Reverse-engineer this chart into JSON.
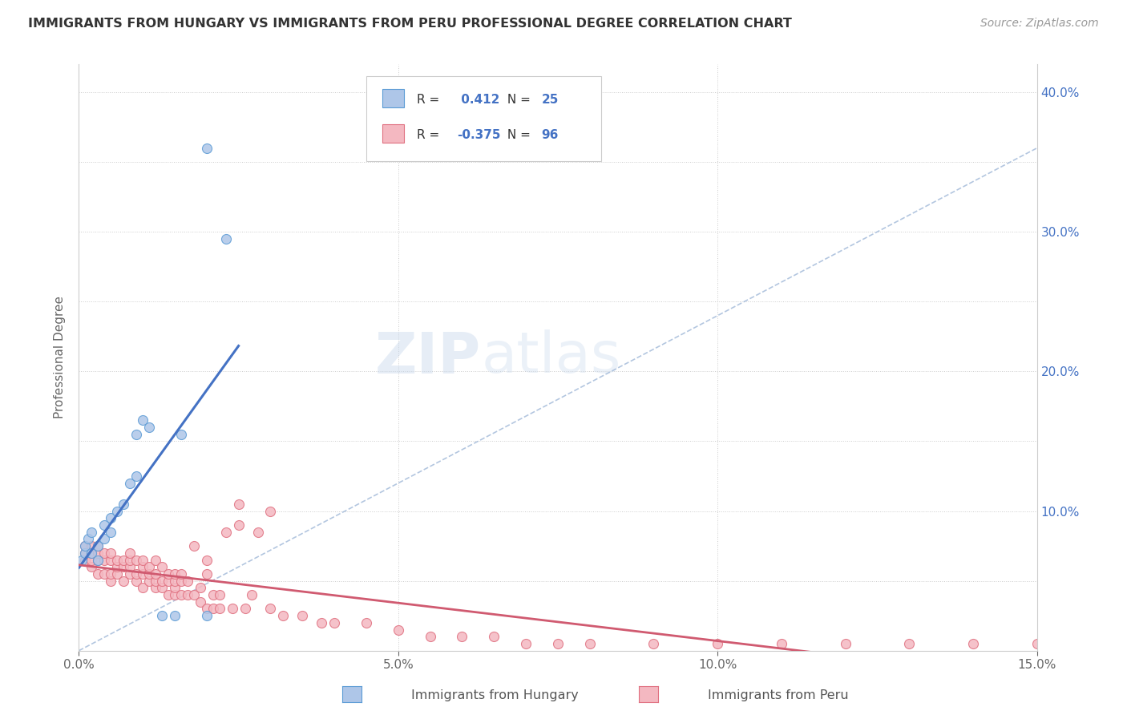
{
  "title": "IMMIGRANTS FROM HUNGARY VS IMMIGRANTS FROM PERU PROFESSIONAL DEGREE CORRELATION CHART",
  "source": "Source: ZipAtlas.com",
  "ylabel": "Professional Degree",
  "xlim": [
    0.0,
    0.15
  ],
  "ylim": [
    0.0,
    0.42
  ],
  "hungary_color": "#aec6e8",
  "hungary_edge_color": "#5b9bd5",
  "peru_color": "#f4b8c1",
  "peru_edge_color": "#e07080",
  "hungary_R": 0.412,
  "hungary_N": 25,
  "peru_R": -0.375,
  "peru_N": 96,
  "hungary_line_color": "#4472c4",
  "peru_line_color": "#d05a70",
  "dashed_line_color": "#a0b8d8",
  "watermark": "ZIPatlas",
  "hungary_scatter_x": [
    0.0005,
    0.001,
    0.001,
    0.0015,
    0.002,
    0.002,
    0.003,
    0.003,
    0.004,
    0.004,
    0.005,
    0.005,
    0.006,
    0.007,
    0.008,
    0.009,
    0.009,
    0.01,
    0.011,
    0.013,
    0.015,
    0.016,
    0.02,
    0.02,
    0.023
  ],
  "hungary_scatter_y": [
    0.065,
    0.07,
    0.075,
    0.08,
    0.07,
    0.085,
    0.065,
    0.075,
    0.08,
    0.09,
    0.085,
    0.095,
    0.1,
    0.105,
    0.12,
    0.125,
    0.155,
    0.165,
    0.16,
    0.025,
    0.025,
    0.155,
    0.36,
    0.025,
    0.295
  ],
  "peru_scatter_x": [
    0.001,
    0.001,
    0.001,
    0.002,
    0.002,
    0.002,
    0.002,
    0.003,
    0.003,
    0.003,
    0.003,
    0.004,
    0.004,
    0.004,
    0.005,
    0.005,
    0.005,
    0.005,
    0.006,
    0.006,
    0.006,
    0.007,
    0.007,
    0.007,
    0.008,
    0.008,
    0.008,
    0.008,
    0.009,
    0.009,
    0.009,
    0.01,
    0.01,
    0.01,
    0.01,
    0.011,
    0.011,
    0.011,
    0.012,
    0.012,
    0.012,
    0.012,
    0.013,
    0.013,
    0.013,
    0.014,
    0.014,
    0.014,
    0.015,
    0.015,
    0.015,
    0.015,
    0.016,
    0.016,
    0.016,
    0.017,
    0.017,
    0.018,
    0.018,
    0.019,
    0.019,
    0.02,
    0.02,
    0.021,
    0.021,
    0.022,
    0.022,
    0.023,
    0.024,
    0.025,
    0.026,
    0.027,
    0.028,
    0.03,
    0.032,
    0.035,
    0.038,
    0.04,
    0.045,
    0.05,
    0.055,
    0.06,
    0.065,
    0.07,
    0.075,
    0.08,
    0.09,
    0.1,
    0.11,
    0.12,
    0.13,
    0.14,
    0.15,
    0.03,
    0.025,
    0.02
  ],
  "peru_scatter_y": [
    0.065,
    0.07,
    0.075,
    0.06,
    0.065,
    0.07,
    0.075,
    0.055,
    0.065,
    0.07,
    0.075,
    0.055,
    0.065,
    0.07,
    0.05,
    0.055,
    0.065,
    0.07,
    0.055,
    0.06,
    0.065,
    0.05,
    0.06,
    0.065,
    0.055,
    0.06,
    0.065,
    0.07,
    0.05,
    0.055,
    0.065,
    0.045,
    0.055,
    0.06,
    0.065,
    0.05,
    0.055,
    0.06,
    0.045,
    0.05,
    0.055,
    0.065,
    0.045,
    0.05,
    0.06,
    0.04,
    0.05,
    0.055,
    0.04,
    0.045,
    0.05,
    0.055,
    0.04,
    0.05,
    0.055,
    0.04,
    0.05,
    0.04,
    0.075,
    0.035,
    0.045,
    0.03,
    0.065,
    0.03,
    0.04,
    0.03,
    0.04,
    0.085,
    0.03,
    0.09,
    0.03,
    0.04,
    0.085,
    0.03,
    0.025,
    0.025,
    0.02,
    0.02,
    0.02,
    0.015,
    0.01,
    0.01,
    0.01,
    0.005,
    0.005,
    0.005,
    0.005,
    0.005,
    0.005,
    0.005,
    0.005,
    0.005,
    0.005,
    0.1,
    0.105,
    0.055
  ]
}
